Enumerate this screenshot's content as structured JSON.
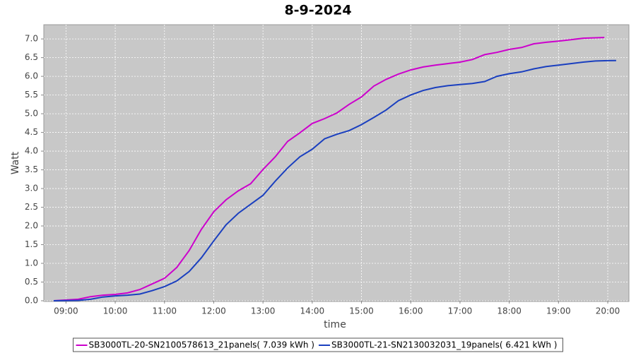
{
  "chart_data": {
    "type": "line",
    "title": "8-9-2024",
    "x_label": "time",
    "y_label": "Watt",
    "xlim": [
      8.55,
      20.43
    ],
    "ylim": [
      0,
      7.38
    ],
    "grid": true,
    "legend": "bottom",
    "xticks": [
      {
        "value": 9,
        "label": "09:00"
      },
      {
        "value": 10,
        "label": "10:00"
      },
      {
        "value": 11,
        "label": "11:00"
      },
      {
        "value": 12,
        "label": "12:00"
      },
      {
        "value": 13,
        "label": "13:00"
      },
      {
        "value": 14,
        "label": "14:00"
      },
      {
        "value": 15,
        "label": "15:00"
      },
      {
        "value": 16,
        "label": "16:00"
      },
      {
        "value": 17,
        "label": "17:00"
      },
      {
        "value": 18,
        "label": "18:00"
      },
      {
        "value": 19,
        "label": "19:00"
      },
      {
        "value": 20,
        "label": "20:00"
      }
    ],
    "yticks": [
      {
        "value": 0,
        "label": "0.0"
      },
      {
        "value": 0.5,
        "label": "0.5"
      },
      {
        "value": 1,
        "label": "1.0"
      },
      {
        "value": 1.5,
        "label": "1.5"
      },
      {
        "value": 2,
        "label": "2.0"
      },
      {
        "value": 2.5,
        "label": "2.5"
      },
      {
        "value": 3,
        "label": "3.0"
      },
      {
        "value": 3.5,
        "label": "3.5"
      },
      {
        "value": 4,
        "label": "4.0"
      },
      {
        "value": 4.5,
        "label": "4.5"
      },
      {
        "value": 5,
        "label": "5.0"
      },
      {
        "value": 5.5,
        "label": "5.5"
      },
      {
        "value": 6,
        "label": "6.0"
      },
      {
        "value": 6.5,
        "label": "6.5"
      },
      {
        "value": 7,
        "label": "7.0"
      }
    ],
    "series": [
      {
        "name": "SB3000TL-20-SN2100578613_21panels( 7.039 kWh )",
        "color": "#cc00cc",
        "x": [
          8.75,
          9.25,
          9.5,
          9.75,
          10,
          10.25,
          10.5,
          10.75,
          11,
          11.25,
          11.5,
          11.75,
          12,
          12.25,
          12.5,
          12.75,
          13,
          13.25,
          13.5,
          13.75,
          14,
          14.25,
          14.5,
          14.75,
          15,
          15.25,
          15.5,
          15.75,
          16,
          16.25,
          16.5,
          16.75,
          17,
          17.25,
          17.5,
          17.75,
          18,
          18.25,
          18.5,
          18.75,
          19,
          19.25,
          19.5,
          19.93
        ],
        "values": [
          0,
          0.04,
          0.11,
          0.15,
          0.17,
          0.21,
          0.3,
          0.45,
          0.6,
          0.89,
          1.34,
          1.91,
          2.38,
          2.7,
          2.94,
          3.13,
          3.51,
          3.85,
          4.26,
          4.49,
          4.74,
          4.87,
          5.02,
          5.25,
          5.45,
          5.74,
          5.92,
          6.06,
          6.17,
          6.25,
          6.3,
          6.34,
          6.38,
          6.45,
          6.58,
          6.64,
          6.72,
          6.77,
          6.87,
          6.91,
          6.94,
          6.98,
          7.02,
          7.039
        ]
      },
      {
        "name": "SB3000TL-21-SN2130032031_19panels( 6.421 kWh )",
        "color": "#1a3fbf",
        "x": [
          8.75,
          9.25,
          9.5,
          9.75,
          10,
          10.25,
          10.5,
          10.75,
          11,
          11.25,
          11.5,
          11.75,
          12,
          12.25,
          12.5,
          12.75,
          13,
          13.25,
          13.5,
          13.75,
          14,
          14.25,
          14.5,
          14.75,
          15,
          15.25,
          15.5,
          15.75,
          16,
          16.25,
          16.5,
          16.75,
          17,
          17.25,
          17.5,
          17.75,
          18,
          18.25,
          18.5,
          18.75,
          19,
          19.25,
          19.5,
          19.75,
          20,
          20.17
        ],
        "values": [
          0,
          0.01,
          0.04,
          0.1,
          0.13,
          0.15,
          0.18,
          0.27,
          0.38,
          0.53,
          0.78,
          1.15,
          1.6,
          2.03,
          2.34,
          2.58,
          2.82,
          3.2,
          3.55,
          3.85,
          4.05,
          4.33,
          4.45,
          4.55,
          4.71,
          4.9,
          5.1,
          5.35,
          5.5,
          5.62,
          5.7,
          5.75,
          5.78,
          5.81,
          5.86,
          6.0,
          6.07,
          6.12,
          6.2,
          6.26,
          6.3,
          6.34,
          6.38,
          6.41,
          6.42,
          6.421
        ]
      }
    ]
  }
}
